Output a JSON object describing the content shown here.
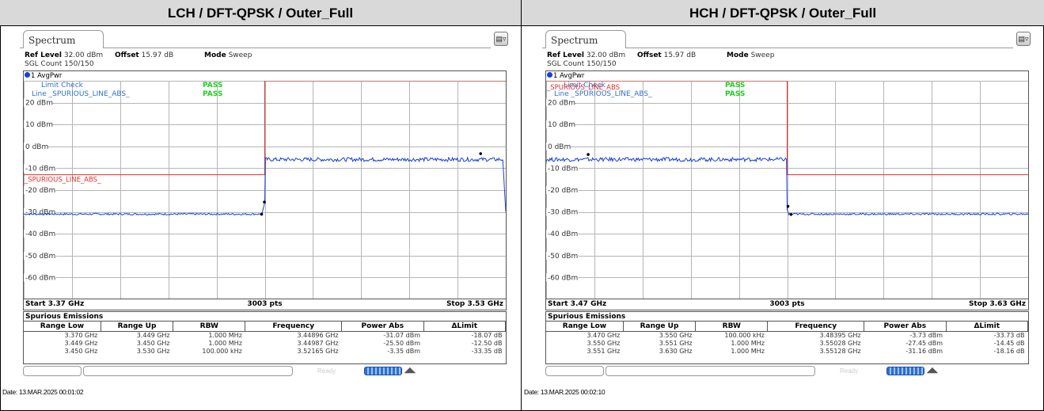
{
  "panels": [
    {
      "header": "LCH / DFT-QPSK / Outer_Full",
      "tab_label": "Spectrum",
      "ref_level_label": "Ref Level",
      "ref_level_value": "32.00 dBm",
      "offset_label": "Offset",
      "offset_value": "15.97 dB",
      "mode_label": "Mode",
      "mode_value": "Sweep",
      "sgl_count": "SGL Count 150/150",
      "trace_label": "1 AvgPwr",
      "limit_check_label": "Limit Check",
      "limit_check_status": "PASS",
      "limit_line_label": "Line _SPURIOUS_LINE_ABS_",
      "limit_line_status": "PASS",
      "limit_line_name": "_SPURIOUS_LINE_ABS_",
      "start": "Start 3.37 GHz",
      "pts": "3003 pts",
      "stop": "Stop 3.53 GHz",
      "table_title": "Spurious Emissions",
      "columns": [
        "Range Low",
        "Range Up",
        "RBW",
        "Frequency",
        "Power Abs",
        "ΔLimit"
      ],
      "rows": [
        [
          "3.370 GHz",
          "3.449 GHz",
          "1.000 MHz",
          "3.44896 GHz",
          "-31.07 dBm",
          "-18.07 dB"
        ],
        [
          "3.449 GHz",
          "3.450 GHz",
          "1.000 MHz",
          "3.44987 GHz",
          "-25.50 dBm",
          "-12.50 dB"
        ],
        [
          "3.450 GHz",
          "3.530 GHz",
          "100.000 kHz",
          "3.52165 GHz",
          "-3.35 dBm",
          "-33.35 dB"
        ]
      ],
      "status_ready": "Ready",
      "date": "Date: 13.MAR.2025 00:01:02"
    },
    {
      "header": "HCH / DFT-QPSK / Outer_Full",
      "tab_label": "Spectrum",
      "ref_level_label": "Ref Level",
      "ref_level_value": "32.00 dBm",
      "offset_label": "Offset",
      "offset_value": "15.97 dB",
      "mode_label": "Mode",
      "mode_value": "Sweep",
      "sgl_count": "SGL Count 150/150",
      "trace_label": "1 AvgPwr",
      "limit_check_label": "Limit Check",
      "limit_check_status": "PASS",
      "limit_line_label": "Line _SPURIOUS_LINE_ABS_",
      "limit_line_status": "PASS",
      "limit_line_name": "_SPURIOUS_LINE_ABS_",
      "start": "Start 3.47 GHz",
      "pts": "3003 pts",
      "stop": "Stop 3.63 GHz",
      "table_title": "Spurious Emissions",
      "columns": [
        "Range Low",
        "Range Up",
        "RBW",
        "Frequency",
        "Power Abs",
        "ΔLimit"
      ],
      "rows": [
        [
          "3.470 GHz",
          "3.550 GHz",
          "100.000 kHz",
          "3.48395 GHz",
          "-3.73 dBm",
          "-33.73 dB"
        ],
        [
          "3.550 GHz",
          "3.551 GHz",
          "1.000 MHz",
          "3.55028 GHz",
          "-27.45 dBm",
          "-14.45 dB"
        ],
        [
          "3.551 GHz",
          "3.630 GHz",
          "1.000 MHz",
          "3.55128 GHz",
          "-31.16 dBm",
          "-18.16 dB"
        ]
      ],
      "status_ready": "Ready",
      "date": "Date: 13.MAR.2025 00:02:10"
    }
  ],
  "y_ticks": [
    "20 dBm",
    "10 dBm",
    "0 dBm",
    "-10 dBm",
    "-20 dBm",
    "-30 dBm",
    "-40 dBm",
    "-50 dBm",
    "-60 dBm"
  ],
  "colors": {
    "trace": "#1a3fd8",
    "limit": "#e0302a",
    "pass": "#22cc22",
    "limit_text": "#2f6fd8"
  },
  "chart_data": [
    {
      "type": "line",
      "x_range": [
        3.37,
        3.53
      ],
      "ylim": [
        -70,
        30
      ],
      "y_unit": "dBm",
      "series": [
        {
          "name": "1 AvgPwr",
          "x": [
            3.37,
            3.449,
            3.4498,
            3.45,
            3.4502,
            3.529,
            3.53
          ],
          "values": [
            -31,
            -31,
            -27,
            -25,
            -6,
            -6,
            -30
          ]
        }
      ],
      "limit_lines": [
        [
          3.37,
          3.45,
          -13
        ],
        [
          3.45,
          3.53,
          30
        ]
      ]
    },
    {
      "type": "line",
      "x_range": [
        3.47,
        3.63
      ],
      "ylim": [
        -70,
        30
      ],
      "y_unit": "dBm",
      "series": [
        {
          "name": "1 AvgPwr",
          "x": [
            3.47,
            3.5498,
            3.55,
            3.5505,
            3.551,
            3.63
          ],
          "values": [
            -6,
            -6,
            -29,
            -31,
            -31,
            -31
          ]
        }
      ],
      "limit_lines": [
        [
          3.47,
          3.55,
          30
        ],
        [
          3.55,
          3.63,
          -13
        ]
      ]
    }
  ]
}
